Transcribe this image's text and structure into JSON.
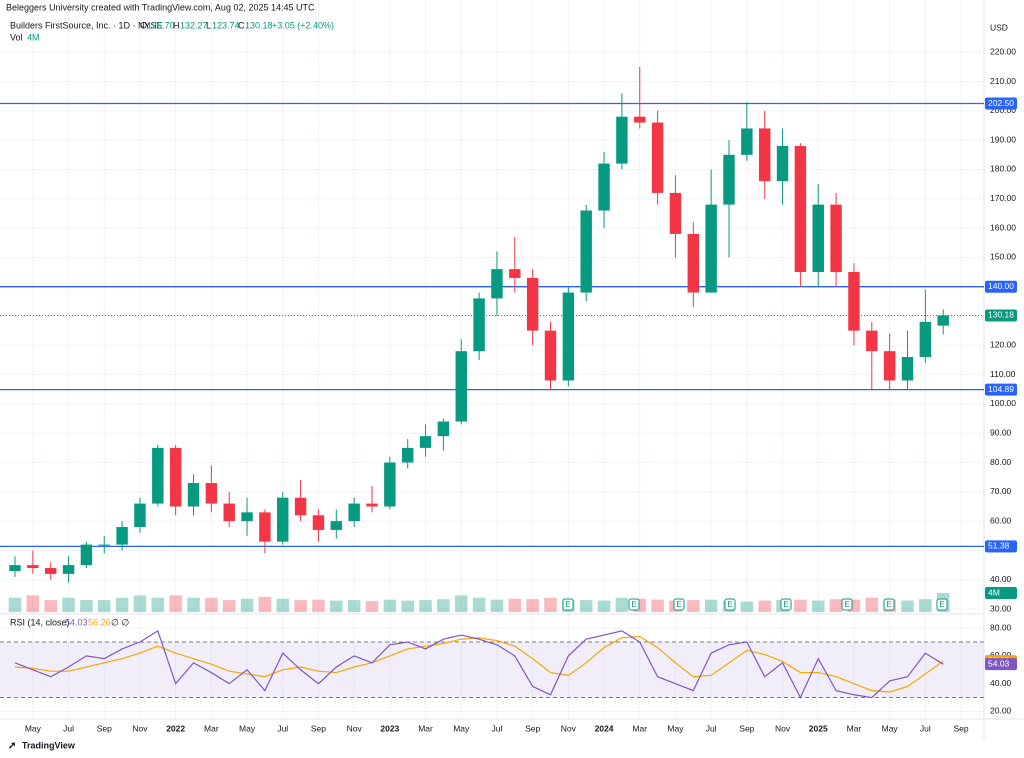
{
  "header": {
    "attribution": "Beleggers University created with TradingView.com, Aug 02, 2025 14:45 UTC",
    "symbol": "Builders FirstSource, Inc. · 1D · NYSE",
    "o_label": "O",
    "o": "126.70",
    "h_label": "H",
    "h": "132.27",
    "l_label": "L",
    "l": "123.74",
    "c_label": "C",
    "c": "130.18",
    "change": "+3.05 (+2.40%)",
    "vol_label": "Vol",
    "vol": "4M",
    "currency": "USD",
    "rsi_label": "RSI (14, close)",
    "rsi_value": "54.03",
    "rsi_ma_value": "56.26",
    "rsi_extra": "∅ ∅",
    "earnings_badge": "E",
    "footer": "TradingView"
  },
  "chart_data": {
    "type": "candlestick",
    "categories": [
      null,
      "May",
      null,
      "Jul",
      null,
      "Sep",
      null,
      "Nov",
      null,
      "2022",
      null,
      "Mar",
      null,
      "May",
      null,
      "Jul",
      null,
      "Sep",
      null,
      "Nov",
      null,
      "2023",
      null,
      "Mar",
      null,
      "May",
      null,
      "Jul",
      null,
      "Sep",
      null,
      "Nov",
      null,
      "2024",
      null,
      "Mar",
      null,
      "May",
      null,
      "Jul",
      null,
      "Sep",
      null,
      "Nov",
      null,
      "2025",
      null,
      "Mar",
      null,
      "May",
      null,
      "Jul",
      null,
      "Sep"
    ],
    "open": [
      43,
      45,
      44,
      42,
      45,
      52,
      52,
      58,
      66,
      85,
      65,
      73,
      66,
      60,
      63,
      53,
      68,
      62,
      57,
      60,
      66,
      65,
      80,
      85,
      89,
      94,
      118,
      136,
      146,
      143,
      125,
      108,
      138,
      166,
      182,
      198,
      196,
      172,
      158,
      138,
      168,
      185,
      194,
      176,
      188,
      145,
      168,
      145,
      125,
      118,
      108,
      116,
      126.7,
      null
    ],
    "high": [
      48,
      50,
      46,
      48,
      53,
      55,
      60,
      68,
      86,
      86,
      76,
      79,
      70,
      68,
      64,
      70,
      74,
      64,
      64,
      68,
      72,
      82,
      88,
      93,
      95,
      122,
      138,
      152,
      157,
      146,
      128,
      140,
      168,
      186,
      206,
      215,
      200,
      178,
      162,
      180,
      190,
      203,
      200,
      194,
      189,
      175,
      172,
      148,
      128,
      124,
      125,
      139,
      132.27,
      null
    ],
    "low": [
      41,
      42,
      40,
      39,
      44,
      49,
      50,
      56,
      65,
      62,
      62,
      63,
      58,
      55,
      49,
      52,
      60,
      53,
      54,
      58,
      63,
      64,
      78,
      82,
      84,
      93,
      115,
      130,
      138,
      120,
      105,
      106,
      135,
      160,
      180,
      194,
      168,
      150,
      133,
      138,
      150,
      183,
      170,
      168,
      140,
      140,
      140,
      120,
      105,
      105,
      105,
      114,
      123.74,
      null
    ],
    "close": [
      45,
      44,
      42,
      45,
      52,
      52,
      58,
      66,
      85,
      65,
      73,
      66,
      60,
      63,
      53,
      68,
      62,
      57,
      60,
      66,
      65,
      80,
      85,
      89,
      94,
      118,
      136,
      146,
      143,
      125,
      108,
      138,
      166,
      182,
      198,
      196,
      172,
      158,
      138,
      168,
      185,
      194,
      176,
      188,
      145,
      168,
      145,
      125,
      118,
      108,
      116,
      128,
      130.18,
      null
    ],
    "up_color": "#089981",
    "down_color": "#f23645",
    "ylim": [
      29,
      231
    ],
    "yticks": [
      {
        "value": 30,
        "label": "30.00"
      },
      {
        "value": 40,
        "label": "40.00"
      },
      {
        "value": 50,
        "label": "50.00"
      },
      {
        "value": 60,
        "label": "60.00"
      },
      {
        "value": 70,
        "label": "70.00"
      },
      {
        "value": 80,
        "label": "80.00"
      },
      {
        "value": 90,
        "label": "90.00"
      },
      {
        "value": 100,
        "label": "100.00"
      },
      {
        "value": 110,
        "label": "110.00"
      },
      {
        "value": 120,
        "label": "120.00"
      },
      {
        "value": 130,
        "label": "130.00"
      },
      {
        "value": 140,
        "label": "140.00"
      },
      {
        "value": 150,
        "label": "150.00"
      },
      {
        "value": 160,
        "label": "160.00"
      },
      {
        "value": 170,
        "label": "170.00"
      },
      {
        "value": 180,
        "label": "180.00"
      },
      {
        "value": 190,
        "label": "190.00"
      },
      {
        "value": 200,
        "label": "200.00"
      },
      {
        "value": 210,
        "label": "210.00"
      },
      {
        "value": 220,
        "label": "220.00"
      }
    ],
    "grid": true,
    "levels": [
      {
        "value": 202.5,
        "label": "202.50"
      },
      {
        "value": 140,
        "label": "140.00"
      },
      {
        "value": 104.89,
        "label": "104.89"
      },
      {
        "value": 51.38,
        "label": "51.38"
      }
    ],
    "level_color": "#2962ff",
    "last_price": {
      "value": 130.18,
      "label": "130.18"
    },
    "volume": [
      3,
      3.5,
      2.5,
      3,
      2.5,
      2.5,
      3,
      3.5,
      3,
      3.5,
      3,
      3,
      2.5,
      2.8,
      3.2,
      2.8,
      2.5,
      2.6,
      2.4,
      2.5,
      2.3,
      2.6,
      2.4,
      2.5,
      2.7,
      3.5,
      3,
      2.6,
      2.8,
      2.7,
      3,
      2.6,
      2.5,
      2.4,
      3,
      2.8,
      2.6,
      2.4,
      2.5,
      2.6,
      2.3,
      2.2,
      2.4,
      2.5,
      2.6,
      2.4,
      2.7,
      2.6,
      3,
      2.6,
      2.4,
      2.7,
      4,
      null
    ],
    "volume_lim": [
      0,
      20
    ],
    "rsi": [
      55,
      50,
      45,
      52,
      60,
      58,
      65,
      70,
      78,
      40,
      55,
      48,
      40,
      50,
      35,
      62,
      50,
      40,
      52,
      60,
      55,
      68,
      70,
      65,
      72,
      75,
      72,
      68,
      60,
      38,
      32,
      60,
      72,
      75,
      78,
      70,
      45,
      40,
      35,
      62,
      68,
      70,
      45,
      55,
      30,
      58,
      35,
      32,
      30,
      42,
      45,
      62,
      54.03,
      null
    ],
    "rsi_ma": [
      52,
      51,
      49,
      49,
      52,
      55,
      58,
      62,
      67,
      62,
      58,
      54,
      49,
      47,
      45,
      50,
      52,
      49,
      48,
      52,
      55,
      60,
      65,
      67,
      69,
      72,
      73,
      71,
      67,
      58,
      48,
      46,
      55,
      66,
      73,
      74,
      66,
      55,
      45,
      46,
      55,
      64,
      61,
      56,
      48,
      48,
      45,
      40,
      35,
      34,
      38,
      47,
      56.26,
      null
    ],
    "rsi_color": "#7e57c2",
    "rsi_ma_color": "#f7a600",
    "rsi_lim": [
      16,
      88
    ],
    "rsi_ticks": [
      {
        "value": 20,
        "label": "20.00"
      },
      {
        "value": 40,
        "label": "40.00"
      },
      {
        "value": 60,
        "label": "60.00"
      },
      {
        "value": 80,
        "label": "80.00"
      }
    ],
    "rsi_bands": [
      70,
      30
    ]
  }
}
